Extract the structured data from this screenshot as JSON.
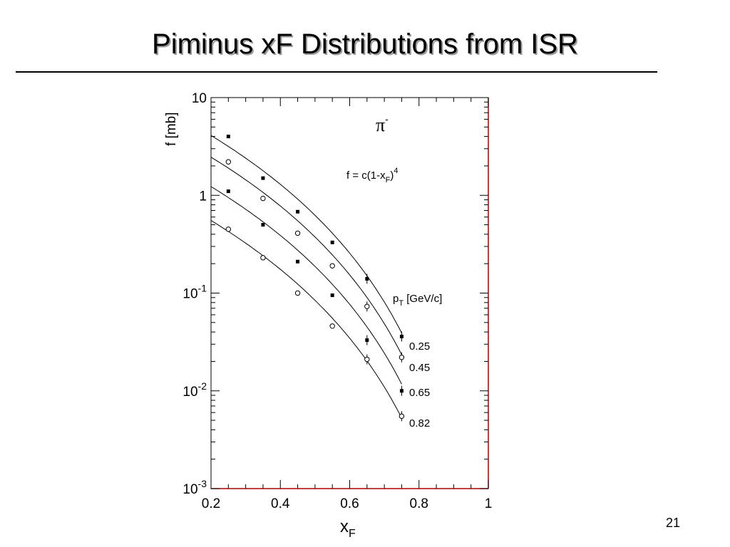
{
  "slide": {
    "title": "Piminus xF Distributions from ISR",
    "number": "21"
  },
  "chart_data": {
    "type": "scatter",
    "title": "",
    "xlabel": "x",
    "xlabel_sub": "F",
    "ylabel": "f [mb]",
    "xlim": [
      0.2,
      1.0
    ],
    "ylim": [
      0.001,
      10
    ],
    "ylog": true,
    "xticks": [
      "0.2",
      "0.4",
      "0.6",
      "0.8",
      "1"
    ],
    "yticks": [
      {
        "base": "10",
        "exp": "-3"
      },
      {
        "base": "10",
        "exp": "-2"
      },
      {
        "base": "10",
        "exp": "-1"
      },
      {
        "base": "1",
        "exp": ""
      },
      {
        "base": "10",
        "exp": ""
      }
    ],
    "particle_label": "π",
    "particle_sup": "-",
    "formula": {
      "a": "f = c(1-x",
      "sub": "F",
      "b": ")",
      "sup": "4"
    },
    "pt_header": {
      "a": "p",
      "sub": "T",
      "b": " [GeV/c]"
    },
    "grid": false,
    "fit_form": "c(1-x)^4",
    "series": [
      {
        "name": "0.25",
        "marker": "filled",
        "x": [
          0.25,
          0.35,
          0.45,
          0.55,
          0.65,
          0.75
        ],
        "y": [
          4.0,
          1.5,
          0.68,
          0.33,
          0.14,
          0.036
        ],
        "fit_c": 10.0
      },
      {
        "name": "0.45",
        "marker": "open",
        "x": [
          0.25,
          0.35,
          0.45,
          0.55,
          0.65,
          0.75
        ],
        "y": [
          2.2,
          0.93,
          0.41,
          0.19,
          0.073,
          0.022
        ],
        "fit_c": 6.0
      },
      {
        "name": "0.65",
        "marker": "filled",
        "x": [
          0.25,
          0.35,
          0.45,
          0.55,
          0.65,
          0.75
        ],
        "y": [
          1.1,
          0.5,
          0.21,
          0.095,
          0.033,
          0.01
        ],
        "fit_c": 3.0
      },
      {
        "name": "0.82",
        "marker": "open",
        "x": [
          0.25,
          0.35,
          0.45,
          0.55,
          0.65,
          0.75
        ],
        "y": [
          0.45,
          0.23,
          0.1,
          0.046,
          0.021,
          0.0055
        ],
        "fit_c": 1.35
      }
    ]
  }
}
